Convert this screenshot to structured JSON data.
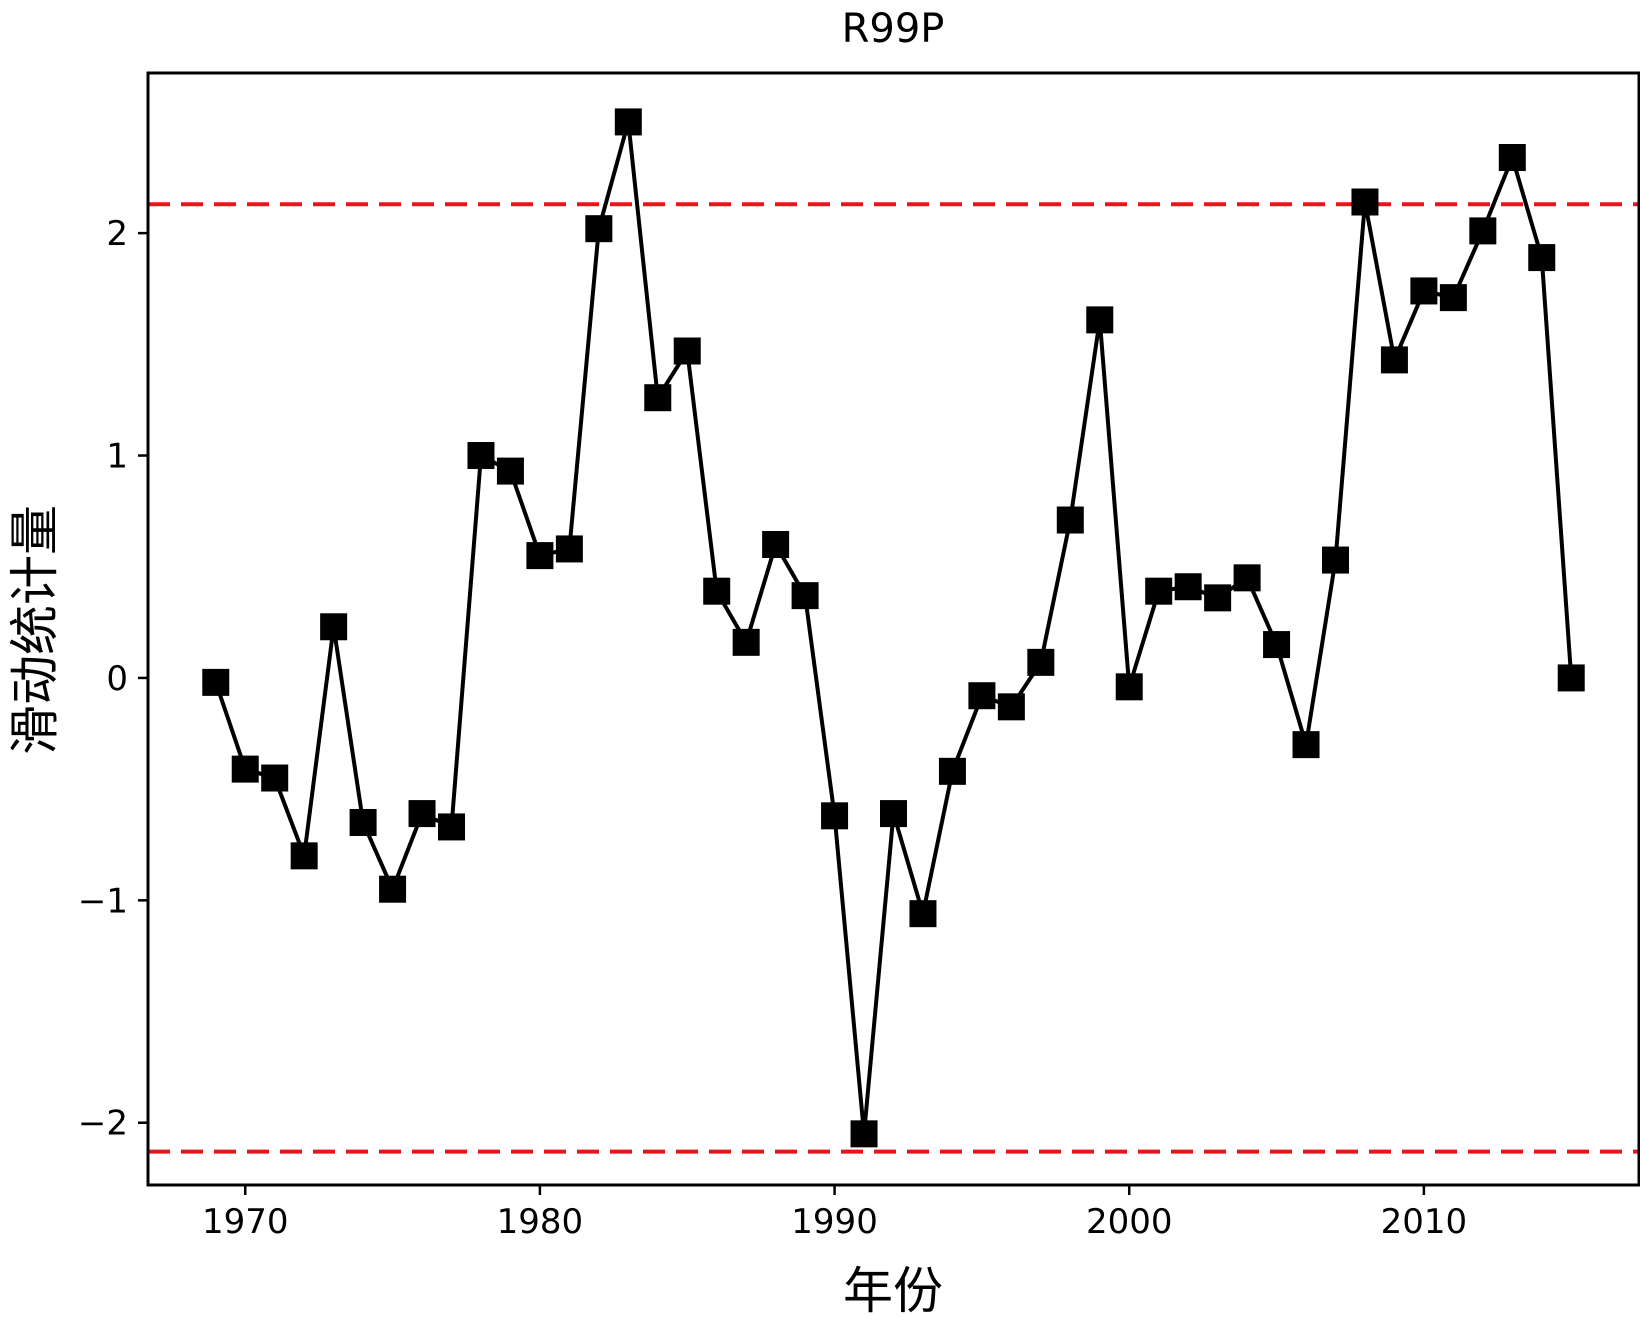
{
  "chart_data": {
    "type": "line",
    "title": "R99P",
    "xlabel": "年份",
    "ylabel": "滑动统计量",
    "xlim": [
      1966.7,
      2017.3
    ],
    "ylim": [
      -2.28,
      2.72
    ],
    "xticks": [
      1970,
      1980,
      1990,
      2000,
      2010
    ],
    "yticks": [
      -2,
      -1,
      0,
      1,
      2
    ],
    "ytick_labels": [
      "−2",
      "−1",
      "0",
      "1",
      "2"
    ],
    "marker": "square",
    "line_color": "#000000",
    "marker_color": "#000000",
    "threshold_color": "#e8141b",
    "thresholds": [
      2.13,
      -2.13
    ],
    "grid": false,
    "series": [
      {
        "x": [
          1969,
          1970,
          1971,
          1972,
          1973,
          1974,
          1975,
          1976,
          1977,
          1978,
          1979,
          1980,
          1981,
          1982,
          1983,
          1984,
          1985,
          1986,
          1987,
          1988,
          1989,
          1990,
          1991,
          1992,
          1993,
          1994,
          1995,
          1996,
          1997,
          1998,
          1999,
          2000,
          2001,
          2002,
          2003,
          2004,
          2005,
          2006,
          2007,
          2008,
          2009,
          2010,
          2011,
          2012,
          2013,
          2014,
          2015
        ],
        "y": [
          -0.02,
          -0.41,
          -0.45,
          -0.8,
          0.23,
          -0.65,
          -0.95,
          -0.61,
          -0.67,
          1.0,
          0.93,
          0.55,
          0.58,
          2.02,
          2.5,
          1.26,
          1.47,
          0.39,
          0.16,
          0.6,
          0.37,
          -0.62,
          -2.05,
          -0.61,
          -1.06,
          -0.42,
          -0.08,
          -0.13,
          0.07,
          0.71,
          1.61,
          -0.04,
          0.39,
          0.41,
          0.36,
          0.45,
          0.15,
          -0.3,
          0.53,
          2.14,
          1.43,
          1.74,
          1.71,
          2.01,
          2.34,
          1.89,
          0.0
        ]
      }
    ]
  }
}
